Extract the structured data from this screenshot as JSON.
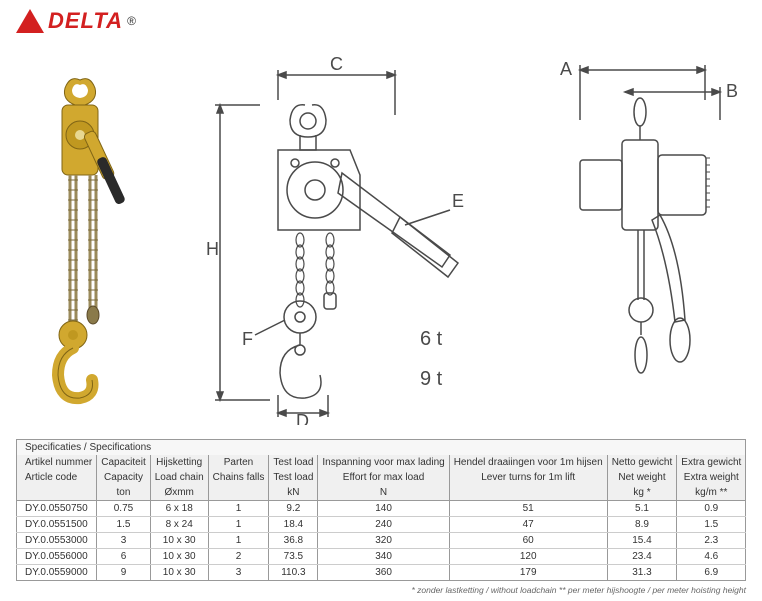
{
  "logo": {
    "text": "DELTA",
    "reg": "®",
    "color": "#d32020"
  },
  "diagrams": {
    "labels": {
      "A": "A",
      "B": "B",
      "C": "C",
      "D": "D",
      "E": "E",
      "F": "F",
      "H": "H"
    },
    "tons": [
      "6 t",
      "9 t"
    ],
    "line_color": "#4a4a4a",
    "hoist_color": "#d1a82f",
    "chain_color": "#9a8a5a"
  },
  "table": {
    "title": "Specificaties / Specifications",
    "columns_nl": [
      "Artikel nummer",
      "Capaciteit",
      "Hijsketting",
      "Parten",
      "Test load",
      "Inspanning voor max lading",
      "Hendel draaiingen voor 1m hijsen",
      "Netto gewicht",
      "Extra gewicht"
    ],
    "columns_en": [
      "Article code",
      "Capacity",
      "Load chain",
      "Chains falls",
      "Test load",
      "Effort for max load",
      "Lever turns for 1m lift",
      "Net weight",
      "Extra weight"
    ],
    "units": [
      "",
      "ton",
      "Øxmm",
      "",
      "kN",
      "N",
      "",
      "kg *",
      "kg/m **"
    ],
    "rows": [
      [
        "DY.0.0550750",
        "0.75",
        "6 x 18",
        "1",
        "9.2",
        "140",
        "51",
        "5.1",
        "0.9"
      ],
      [
        "DY.0.0551500",
        "1.5",
        "8 x 24",
        "1",
        "18.4",
        "240",
        "47",
        "8.9",
        "1.5"
      ],
      [
        "DY.0.0553000",
        "3",
        "10 x 30",
        "1",
        "36.8",
        "320",
        "60",
        "15.4",
        "2.3"
      ],
      [
        "DY.0.0556000",
        "6",
        "10 x 30",
        "2",
        "73.5",
        "340",
        "120",
        "23.4",
        "4.6"
      ],
      [
        "DY.0.0559000",
        "9",
        "10 x 30",
        "3",
        "110.3",
        "360",
        "179",
        "31.3",
        "6.9"
      ]
    ],
    "col_widths": [
      "90px",
      "60px",
      "65px",
      "55px",
      "60px",
      "145px",
      "150px",
      "65px",
      "65px"
    ]
  },
  "footnote": "* zonder lastketting / without loadchain ** per meter hijshoogte / per meter hoisting height"
}
